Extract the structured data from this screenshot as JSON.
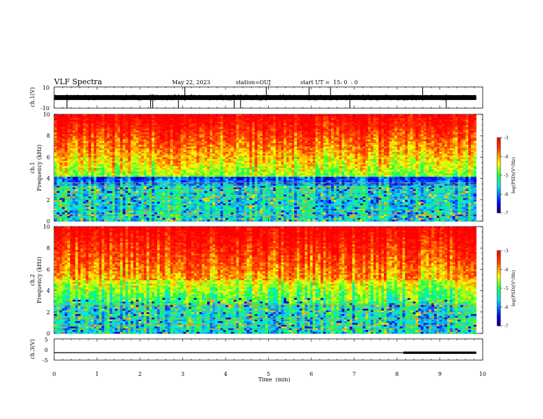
{
  "header": {
    "title": "VLF Spectra",
    "date": "May 22, 2023",
    "station": "station=OUJ",
    "start": "start UT =  15: 0  : 0"
  },
  "chart_data": [
    {
      "type": "line",
      "panel": "ch1-waveform",
      "ylabel": "ch.1(V)",
      "ylim": [
        -10,
        10
      ],
      "yticks": [
        "10",
        "-10"
      ],
      "xlim": [
        0,
        10
      ],
      "baseline_v": 0,
      "spike_times_min": [
        0.3,
        2.25,
        2.3,
        2.9,
        3.05,
        4.2,
        4.35,
        4.95,
        5.95,
        6.45,
        6.9,
        8.6,
        9.15
      ]
    },
    {
      "type": "heatmap",
      "panel": "ch1-spectrogram",
      "ylabel": "ch.1\nFrequency  (kHz)",
      "xlim": [
        0,
        9.85
      ],
      "ylim": [
        0,
        10
      ],
      "yticks": [
        "0",
        "2",
        "4",
        "6",
        "8",
        "10"
      ],
      "colorscale": {
        "label": "log(PSD)(V²/Hz)",
        "range": [
          -7,
          -3
        ],
        "ticks": [
          "-3",
          "-4",
          "-5",
          "-6",
          "-7"
        ]
      }
    },
    {
      "type": "heatmap",
      "panel": "ch2-spectrogram",
      "ylabel": "ch.2\nFrequency  (kHz)",
      "xlim": [
        0,
        9.85
      ],
      "ylim": [
        0,
        10
      ],
      "yticks": [
        "0",
        "2",
        "4",
        "6",
        "8",
        "10"
      ],
      "colorscale": {
        "label": "log(PSD)(V²/Hz)",
        "range": [
          -7,
          -3
        ],
        "ticks": [
          "-3",
          "-4",
          "-5",
          "-6",
          "-7"
        ]
      }
    },
    {
      "type": "line",
      "panel": "ch3",
      "ylabel": "ch.3(V)",
      "ylim": [
        -5,
        5
      ],
      "yticks": [
        "5",
        "0",
        "-5"
      ],
      "xlim": [
        0,
        10
      ],
      "value_v": -1.5,
      "thick_segment_min": [
        8.15,
        9.85
      ]
    }
  ],
  "xaxis": {
    "label": "Time  (min)",
    "ticks": [
      "0",
      "1",
      "2",
      "3",
      "4",
      "5",
      "6",
      "7",
      "8",
      "9",
      "10"
    ],
    "range": [
      0,
      10
    ]
  }
}
